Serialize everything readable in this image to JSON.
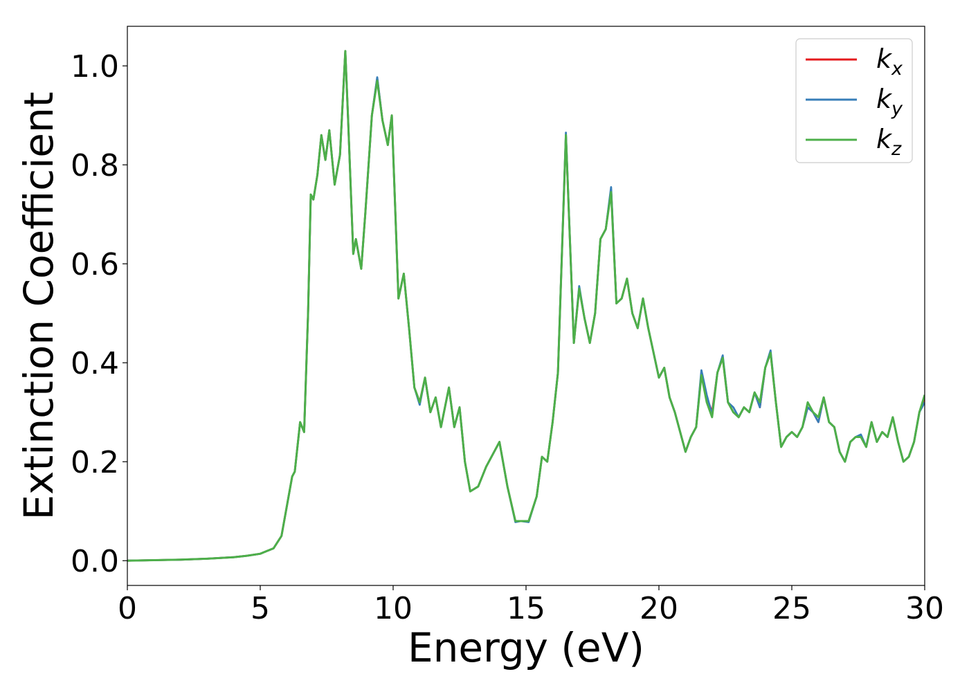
{
  "chart_data": {
    "type": "line",
    "xlabel": "Energy (eV)",
    "ylabel": "Extinction Coefficient",
    "xlim": [
      0,
      30
    ],
    "ylim": [
      -0.05,
      1.08
    ],
    "xticks": [
      "0",
      "5",
      "10",
      "15",
      "20",
      "25",
      "30"
    ],
    "yticks": [
      "0.0",
      "0.2",
      "0.4",
      "0.6",
      "0.8",
      "1.0"
    ],
    "grid": false,
    "legend": {
      "placement": "top-right",
      "entries": [
        {
          "base": "k",
          "sub": "x",
          "color": "#e41a1c"
        },
        {
          "base": "k",
          "sub": "y",
          "color": "#377eb8"
        },
        {
          "base": "k",
          "sub": "z",
          "color": "#4daf4a"
        }
      ]
    },
    "x": [
      0,
      1,
      2,
      3,
      4,
      4.5,
      5,
      5.5,
      5.8,
      6.0,
      6.2,
      6.3,
      6.5,
      6.65,
      6.8,
      6.9,
      7.0,
      7.15,
      7.3,
      7.45,
      7.6,
      7.8,
      8.0,
      8.2,
      8.3,
      8.5,
      8.6,
      8.8,
      8.95,
      9.2,
      9.4,
      9.6,
      9.8,
      9.95,
      10.2,
      10.4,
      10.6,
      10.8,
      11.0,
      11.2,
      11.4,
      11.6,
      11.8,
      12.1,
      12.3,
      12.5,
      12.7,
      12.9,
      13.2,
      13.5,
      13.7,
      14.0,
      14.3,
      14.6,
      14.8,
      15.1,
      15.4,
      15.6,
      15.8,
      16.0,
      16.2,
      16.5,
      16.8,
      17.0,
      17.2,
      17.4,
      17.6,
      17.8,
      18.0,
      18.2,
      18.4,
      18.6,
      18.8,
      19.0,
      19.2,
      19.4,
      19.6,
      19.8,
      20.0,
      20.2,
      20.4,
      20.6,
      20.8,
      21.0,
      21.2,
      21.4,
      21.6,
      21.8,
      22.0,
      22.2,
      22.4,
      22.6,
      22.8,
      23.0,
      23.2,
      23.4,
      23.6,
      23.8,
      24.0,
      24.2,
      24.4,
      24.6,
      24.8,
      25.0,
      25.2,
      25.4,
      25.6,
      25.8,
      26.0,
      26.2,
      26.4,
      26.6,
      26.8,
      27.0,
      27.2,
      27.4,
      27.6,
      27.8,
      28.0,
      28.2,
      28.4,
      28.6,
      28.8,
      29.0,
      29.2,
      29.4,
      29.6,
      29.8,
      30.0
    ],
    "series": [
      {
        "name": "k_x",
        "color": "#e41a1c",
        "values": [
          0.0,
          0.001,
          0.002,
          0.004,
          0.007,
          0.01,
          0.014,
          0.025,
          0.05,
          0.11,
          0.17,
          0.18,
          0.28,
          0.26,
          0.5,
          0.74,
          0.73,
          0.78,
          0.86,
          0.81,
          0.87,
          0.76,
          0.82,
          1.03,
          0.9,
          0.62,
          0.65,
          0.59,
          0.7,
          0.9,
          0.975,
          0.89,
          0.84,
          0.9,
          0.53,
          0.58,
          0.47,
          0.35,
          0.32,
          0.37,
          0.3,
          0.33,
          0.27,
          0.35,
          0.27,
          0.31,
          0.2,
          0.14,
          0.15,
          0.19,
          0.21,
          0.24,
          0.15,
          0.08,
          0.08,
          0.08,
          0.13,
          0.21,
          0.2,
          0.28,
          0.38,
          0.86,
          0.44,
          0.55,
          0.49,
          0.44,
          0.5,
          0.65,
          0.67,
          0.75,
          0.52,
          0.53,
          0.57,
          0.5,
          0.47,
          0.53,
          0.47,
          0.42,
          0.37,
          0.39,
          0.33,
          0.3,
          0.26,
          0.22,
          0.25,
          0.27,
          0.38,
          0.33,
          0.3,
          0.38,
          0.41,
          0.32,
          0.3,
          0.29,
          0.31,
          0.3,
          0.34,
          0.31,
          0.39,
          0.42,
          0.32,
          0.23,
          0.25,
          0.26,
          0.25,
          0.27,
          0.31,
          0.3,
          0.28,
          0.33,
          0.28,
          0.27,
          0.22,
          0.2,
          0.24,
          0.25,
          0.25,
          0.23,
          0.28,
          0.24,
          0.26,
          0.25,
          0.29,
          0.24,
          0.2,
          0.21,
          0.24,
          0.3,
          0.33
        ]
      },
      {
        "name": "k_y",
        "color": "#377eb8",
        "values": [
          0.0,
          0.001,
          0.002,
          0.004,
          0.007,
          0.01,
          0.014,
          0.025,
          0.05,
          0.11,
          0.17,
          0.18,
          0.28,
          0.26,
          0.5,
          0.74,
          0.73,
          0.78,
          0.86,
          0.81,
          0.87,
          0.76,
          0.82,
          1.03,
          0.9,
          0.62,
          0.65,
          0.59,
          0.7,
          0.9,
          0.977,
          0.89,
          0.84,
          0.9,
          0.53,
          0.58,
          0.47,
          0.35,
          0.315,
          0.37,
          0.3,
          0.33,
          0.27,
          0.35,
          0.27,
          0.31,
          0.2,
          0.14,
          0.15,
          0.19,
          0.21,
          0.24,
          0.15,
          0.078,
          0.08,
          0.078,
          0.13,
          0.21,
          0.2,
          0.28,
          0.38,
          0.865,
          0.44,
          0.555,
          0.49,
          0.44,
          0.5,
          0.65,
          0.67,
          0.755,
          0.52,
          0.53,
          0.57,
          0.5,
          0.47,
          0.53,
          0.47,
          0.42,
          0.37,
          0.39,
          0.33,
          0.3,
          0.26,
          0.22,
          0.25,
          0.27,
          0.385,
          0.335,
          0.295,
          0.38,
          0.415,
          0.32,
          0.31,
          0.29,
          0.31,
          0.3,
          0.34,
          0.31,
          0.39,
          0.425,
          0.32,
          0.23,
          0.25,
          0.26,
          0.25,
          0.27,
          0.31,
          0.3,
          0.28,
          0.33,
          0.28,
          0.27,
          0.22,
          0.2,
          0.24,
          0.25,
          0.255,
          0.23,
          0.28,
          0.24,
          0.26,
          0.25,
          0.29,
          0.24,
          0.2,
          0.21,
          0.24,
          0.3,
          0.32
        ]
      },
      {
        "name": "k_z",
        "color": "#4daf4a",
        "values": [
          0.0,
          0.001,
          0.002,
          0.004,
          0.007,
          0.01,
          0.014,
          0.025,
          0.05,
          0.11,
          0.17,
          0.18,
          0.28,
          0.26,
          0.5,
          0.74,
          0.73,
          0.78,
          0.86,
          0.81,
          0.87,
          0.76,
          0.82,
          1.03,
          0.9,
          0.62,
          0.65,
          0.59,
          0.7,
          0.9,
          0.97,
          0.89,
          0.84,
          0.9,
          0.53,
          0.58,
          0.47,
          0.35,
          0.32,
          0.37,
          0.3,
          0.33,
          0.27,
          0.35,
          0.27,
          0.31,
          0.2,
          0.14,
          0.15,
          0.19,
          0.21,
          0.24,
          0.15,
          0.08,
          0.08,
          0.08,
          0.13,
          0.21,
          0.2,
          0.28,
          0.38,
          0.86,
          0.44,
          0.55,
          0.49,
          0.44,
          0.5,
          0.65,
          0.67,
          0.745,
          0.52,
          0.53,
          0.57,
          0.5,
          0.47,
          0.53,
          0.47,
          0.42,
          0.37,
          0.39,
          0.33,
          0.3,
          0.26,
          0.22,
          0.25,
          0.27,
          0.375,
          0.32,
          0.29,
          0.38,
          0.41,
          0.32,
          0.3,
          0.29,
          0.31,
          0.3,
          0.34,
          0.32,
          0.39,
          0.42,
          0.32,
          0.23,
          0.25,
          0.26,
          0.25,
          0.27,
          0.32,
          0.3,
          0.29,
          0.33,
          0.28,
          0.27,
          0.22,
          0.2,
          0.24,
          0.25,
          0.25,
          0.23,
          0.28,
          0.24,
          0.26,
          0.25,
          0.29,
          0.24,
          0.2,
          0.21,
          0.24,
          0.3,
          0.335
        ]
      }
    ]
  }
}
